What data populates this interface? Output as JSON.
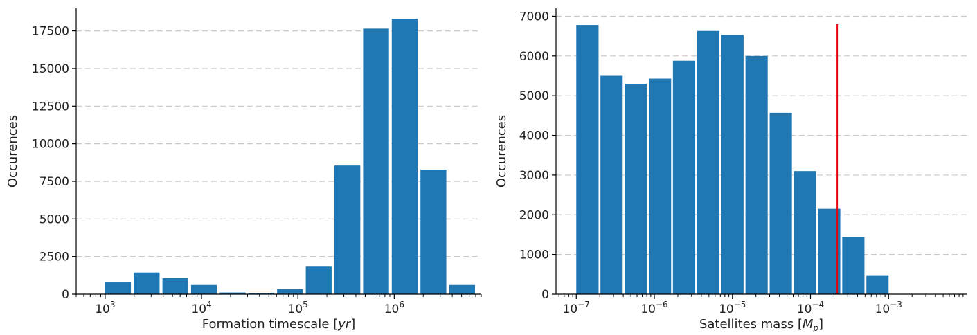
{
  "chart_data": [
    {
      "type": "bar",
      "xscale": "log",
      "xlabel": "Formation timescale [yr]",
      "ylabel": "Occurences",
      "xlim": [
        500,
        8000000
      ],
      "ylim": [
        0,
        19000
      ],
      "yticks": [
        0,
        2500,
        5000,
        7500,
        10000,
        12500,
        15000,
        17500
      ],
      "ytick_labels": [
        "0",
        "2500",
        "5000",
        "7500",
        "10000",
        "12500",
        "15000",
        "17500"
      ],
      "xticks": [
        1000,
        10000,
        100000,
        1000000
      ],
      "xtick_labels": [
        {
          "base": "10",
          "exp": "3"
        },
        {
          "base": "10",
          "exp": "4"
        },
        {
          "base": "10",
          "exp": "5"
        },
        {
          "base": "10",
          "exp": "6"
        }
      ],
      "bars": [
        {
          "x0": 1000,
          "x1": 1850,
          "value": 780
        },
        {
          "x0": 1980,
          "x1": 3670,
          "value": 1440
        },
        {
          "x0": 3930,
          "x1": 7280,
          "value": 1060
        },
        {
          "x0": 7790,
          "x1": 14450,
          "value": 610
        },
        {
          "x0": 15460,
          "x1": 28670,
          "value": 110
        },
        {
          "x0": 30670,
          "x1": 56880,
          "value": 90
        },
        {
          "x0": 60850,
          "x1": 112860,
          "value": 330
        },
        {
          "x0": 120750,
          "x1": 223950,
          "value": 1830
        },
        {
          "x0": 239600,
          "x1": 444400,
          "value": 8550
        },
        {
          "x0": 475500,
          "x1": 882000,
          "value": 17650
        },
        {
          "x0": 943000,
          "x1": 1749000,
          "value": 18300
        },
        {
          "x0": 1872000,
          "x1": 3472000,
          "value": 8280
        },
        {
          "x0": 3715000,
          "x1": 6890000,
          "value": 610
        }
      ],
      "bar_color": "#1f77b4",
      "grid": "y dashed"
    },
    {
      "type": "bar",
      "xscale": "log",
      "xlabel": "Satellites mass [Mp]",
      "xlabel_main": "Satellites mass",
      "xlabel_var": "M",
      "xlabel_sub": "p",
      "ylabel": "Occurences",
      "xlim": [
        5.5e-08,
        0.01
      ],
      "ylim": [
        0,
        7200
      ],
      "yticks": [
        0,
        1000,
        2000,
        3000,
        4000,
        5000,
        6000,
        7000
      ],
      "ytick_labels": [
        "0",
        "1000",
        "2000",
        "3000",
        "4000",
        "5000",
        "6000",
        "7000"
      ],
      "xticks": [
        1e-07,
        1e-06,
        1e-05,
        0.0001,
        0.001
      ],
      "xtick_labels": [
        {
          "base": "10",
          "exp": "−7"
        },
        {
          "base": "10",
          "exp": "−6"
        },
        {
          "base": "10",
          "exp": "−5"
        },
        {
          "base": "10",
          "exp": "−4"
        },
        {
          "base": "10",
          "exp": "−3"
        }
      ],
      "bars": [
        {
          "x0": 1e-07,
          "x1": 1.93e-07,
          "value": 6780
        },
        {
          "x0": 2.04e-07,
          "x1": 3.93e-07,
          "value": 5500
        },
        {
          "x0": 4.16e-07,
          "x1": 8.02e-07,
          "value": 5300
        },
        {
          "x0": 8.49e-07,
          "x1": 1.64e-06,
          "value": 5430
        },
        {
          "x0": 1.73e-06,
          "x1": 3.34e-06,
          "value": 5880
        },
        {
          "x0": 3.53e-06,
          "x1": 6.81e-06,
          "value": 6630
        },
        {
          "x0": 7.2e-06,
          "x1": 1.39e-05,
          "value": 6530
        },
        {
          "x0": 1.47e-05,
          "x1": 2.83e-05,
          "value": 6000
        },
        {
          "x0": 3e-05,
          "x1": 5.78e-05,
          "value": 4570
        },
        {
          "x0": 6.12e-05,
          "x1": 0.000118,
          "value": 3100
        },
        {
          "x0": 0.000125,
          "x1": 0.000241,
          "value": 2150
        },
        {
          "x0": 0.000255,
          "x1": 0.000491,
          "value": 1440
        },
        {
          "x0": 0.00052,
          "x1": 0.001,
          "value": 460
        }
      ],
      "bar_color": "#1f77b4",
      "grid": "y dashed",
      "vline": {
        "x": 0.00022,
        "ymax": 6800,
        "color": "#e8000b"
      }
    }
  ]
}
